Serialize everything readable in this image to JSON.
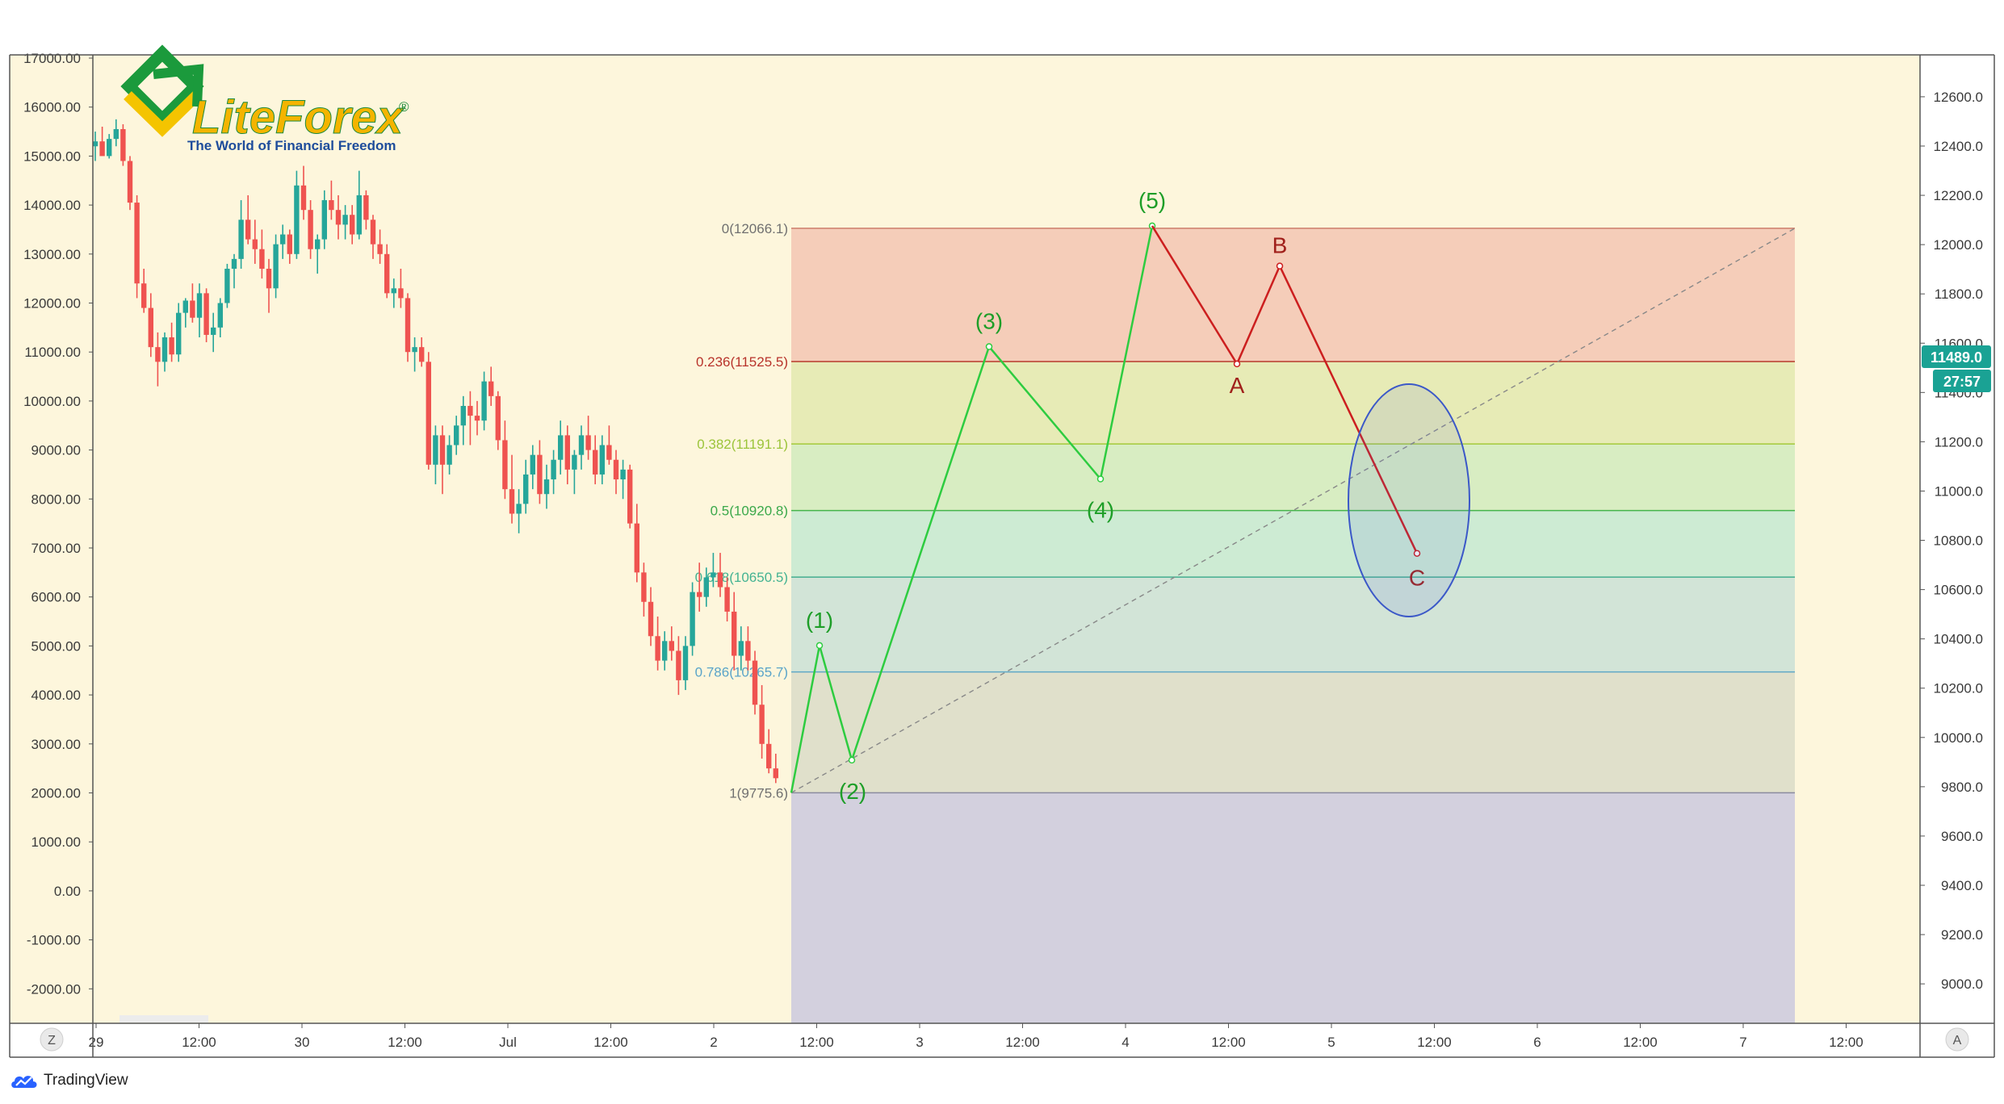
{
  "colors": {
    "background": "#fdf6dc",
    "bull": "#26a69a",
    "bear": "#ef5350",
    "impulse": "#2ecc40",
    "impulse_label": "#1e9e28",
    "correction": "#cc1f1f",
    "correction_label": "#a0201b",
    "ellipse": "#3b58c8",
    "price_badge": "#1aa294"
  },
  "branding": {
    "logo_name": "LiteForex",
    "logo_registered": "®",
    "logo_tagline": "The World of Financial Freedom",
    "footer_name": "TradingView",
    "footer_icon": "tradingview-cloud-icon"
  },
  "buttons": {
    "left_scale_label": "Z",
    "right_scale_label": "A"
  },
  "chart_data": {
    "type": "candlestick",
    "x_ticks": [
      "29",
      "12:00",
      "30",
      "12:00",
      "Jul",
      "12:00",
      "2",
      "12:00",
      "3",
      "12:00",
      "4",
      "12:00",
      "5",
      "12:00",
      "6",
      "12:00",
      "7",
      "12:00"
    ],
    "left_axis_ticks": [
      "17000.00",
      "16000.00",
      "15000.00",
      "14000.00",
      "13000.00",
      "12000.00",
      "11000.00",
      "10000.00",
      "9000.00",
      "8000.00",
      "7000.00",
      "6000.00",
      "5000.00",
      "4000.00",
      "3000.00",
      "2000.00",
      "1000.00",
      "0.00",
      "-1000.00",
      "-2000.00"
    ],
    "right_axis_ticks": [
      "12600.0",
      "12400.0",
      "12200.0",
      "12000.0",
      "11800.0",
      "11600.0",
      "11400.0",
      "11200.0",
      "11000.0",
      "10800.0",
      "10600.0",
      "10400.0",
      "10200.0",
      "10000.0",
      "9800.0",
      "9600.0",
      "9400.0",
      "9200.0",
      "9000.0"
    ],
    "right_ylim": [
      8840,
      12770
    ],
    "last_price": "11489.0",
    "last_price_value": 11489,
    "countdown": "27:57",
    "fib_levels": [
      {
        "label": "0(12066.1)",
        "price": 12066.1,
        "line": "#cd7e6c",
        "fill": "#f5cdb9",
        "text": "#707070"
      },
      {
        "label": "0.236(11525.5)",
        "price": 11525.5,
        "line": "#b83a2c",
        "fill": "#e7ebb6",
        "text": "#b8332b"
      },
      {
        "label": "0.382(11191.1)",
        "price": 11191.1,
        "line": "#a4c93a",
        "fill": "#d8edc2",
        "text": "#9bc43a"
      },
      {
        "label": "0.5(10920.8)",
        "price": 10920.8,
        "line": "#45b54b",
        "fill": "#cdebd3",
        "text": "#3aa84a"
      },
      {
        "label": "0.618(10650.5)",
        "price": 10650.5,
        "line": "#43ad8f",
        "fill": "#d2e4d7",
        "text": "#43b392"
      },
      {
        "label": "0.786(10265.7)",
        "price": 10265.7,
        "line": "#5fa8c6",
        "fill": "#e0e0cb",
        "text": "#5aa4c9"
      },
      {
        "label": "1(9775.6)",
        "price": 9775.6,
        "line": "#8a8aa0",
        "fill": "#d3d0de",
        "text": "#707070"
      }
    ],
    "impulse_waves": [
      {
        "label": "(1)",
        "price": 10373
      },
      {
        "label": "(2)",
        "price": 9908
      },
      {
        "label": "(3)",
        "price": 11586
      },
      {
        "label": "(4)",
        "price": 11049
      },
      {
        "label": "(5)",
        "price": 12076
      }
    ],
    "correction_waves": [
      {
        "label": "A",
        "price": 11516
      },
      {
        "label": "B",
        "price": 11913
      },
      {
        "label": "C",
        "price": 10747
      }
    ],
    "candles": [
      [
        15200,
        15500,
        14900,
        15300
      ],
      [
        15300,
        15600,
        15050,
        15000
      ],
      [
        15000,
        15450,
        14950,
        15350
      ],
      [
        15350,
        15750,
        15200,
        15550
      ],
      [
        15550,
        15650,
        14800,
        14900
      ],
      [
        14900,
        15000,
        13900,
        14050
      ],
      [
        14050,
        14200,
        12100,
        12400
      ],
      [
        12400,
        12700,
        11800,
        11900
      ],
      [
        11900,
        12200,
        10900,
        11100
      ],
      [
        11100,
        11400,
        10300,
        10800
      ],
      [
        10800,
        11400,
        10600,
        11300
      ],
      [
        11300,
        11600,
        10800,
        10950
      ],
      [
        10950,
        12000,
        10800,
        11800
      ],
      [
        11800,
        12100,
        11500,
        12050
      ],
      [
        12050,
        12400,
        11600,
        11700
      ],
      [
        11700,
        12400,
        11300,
        12200
      ],
      [
        12200,
        12300,
        11200,
        11350
      ],
      [
        11350,
        11800,
        11000,
        11500
      ],
      [
        11500,
        12100,
        11300,
        12000
      ],
      [
        12000,
        12800,
        11900,
        12700
      ],
      [
        12700,
        13000,
        12300,
        12900
      ],
      [
        12900,
        14100,
        12700,
        13700
      ],
      [
        13700,
        14200,
        13200,
        13300
      ],
      [
        13300,
        13700,
        12800,
        13100
      ],
      [
        13100,
        13500,
        12500,
        12700
      ],
      [
        12700,
        12900,
        11800,
        12300
      ],
      [
        12300,
        13400,
        12100,
        13200
      ],
      [
        13200,
        13600,
        12900,
        13400
      ],
      [
        13400,
        13500,
        12800,
        13000
      ],
      [
        13000,
        14700,
        12900,
        14400
      ],
      [
        14400,
        14800,
        13700,
        13900
      ],
      [
        13900,
        14100,
        12900,
        13100
      ],
      [
        13100,
        13400,
        12600,
        13300
      ],
      [
        13300,
        14300,
        13100,
        14100
      ],
      [
        14100,
        14500,
        13700,
        13900
      ],
      [
        13900,
        14200,
        13300,
        13600
      ],
      [
        13600,
        14000,
        13300,
        13800
      ],
      [
        13800,
        14000,
        13200,
        13400
      ],
      [
        13400,
        14700,
        13300,
        14200
      ],
      [
        14200,
        14300,
        13500,
        13700
      ],
      [
        13700,
        13800,
        12900,
        13200
      ],
      [
        13200,
        13500,
        12800,
        13000
      ],
      [
        13000,
        13200,
        12100,
        12200
      ],
      [
        12200,
        12500,
        11900,
        12300
      ],
      [
        12300,
        12700,
        11900,
        12100
      ],
      [
        12100,
        12200,
        10800,
        11000
      ],
      [
        11000,
        11300,
        10600,
        11100
      ],
      [
        11100,
        11300,
        10700,
        10800
      ],
      [
        10800,
        11000,
        8600,
        8700
      ],
      [
        8700,
        9500,
        8300,
        9300
      ],
      [
        9300,
        9500,
        8100,
        8700
      ],
      [
        8700,
        9300,
        8500,
        9100
      ],
      [
        9100,
        9700,
        8900,
        9500
      ],
      [
        9500,
        10100,
        9100,
        9900
      ],
      [
        9900,
        10200,
        9100,
        9700
      ],
      [
        9700,
        10000,
        9300,
        9600
      ],
      [
        9600,
        10600,
        9400,
        10400
      ],
      [
        10400,
        10700,
        9900,
        10100
      ],
      [
        10100,
        10200,
        9000,
        9200
      ],
      [
        9200,
        9600,
        8000,
        8200
      ],
      [
        8200,
        8900,
        7500,
        7700
      ],
      [
        7700,
        8200,
        7300,
        7900
      ],
      [
        7900,
        8800,
        7700,
        8500
      ],
      [
        8500,
        9100,
        8200,
        8900
      ],
      [
        8900,
        9200,
        7900,
        8100
      ],
      [
        8100,
        8700,
        7800,
        8400
      ],
      [
        8400,
        9000,
        8100,
        8800
      ],
      [
        8800,
        9600,
        8500,
        9300
      ],
      [
        9300,
        9500,
        8300,
        8600
      ],
      [
        8600,
        9000,
        8100,
        8900
      ],
      [
        8900,
        9500,
        8600,
        9300
      ],
      [
        9300,
        9700,
        8800,
        9000
      ],
      [
        9000,
        9300,
        8300,
        8500
      ],
      [
        8500,
        9300,
        8300,
        9100
      ],
      [
        9100,
        9500,
        8700,
        8800
      ],
      [
        8800,
        9000,
        8100,
        8400
      ],
      [
        8400,
        8800,
        8000,
        8600
      ],
      [
        8600,
        8700,
        7400,
        7500
      ],
      [
        7500,
        7900,
        6300,
        6500
      ],
      [
        6500,
        6700,
        5600,
        5900
      ],
      [
        5900,
        6200,
        5000,
        5200
      ],
      [
        5200,
        5600,
        4500,
        4700
      ],
      [
        4700,
        5300,
        4500,
        5100
      ],
      [
        5100,
        5400,
        4700,
        4900
      ],
      [
        4900,
        5200,
        4000,
        4300
      ],
      [
        4300,
        5200,
        4100,
        5000
      ],
      [
        5000,
        6300,
        4800,
        6100
      ],
      [
        6100,
        6700,
        5700,
        6000
      ],
      [
        6000,
        6600,
        5800,
        6400
      ],
      [
        6400,
        6900,
        6200,
        6500
      ],
      [
        6500,
        6900,
        6000,
        6200
      ],
      [
        6200,
        6400,
        5500,
        5700
      ],
      [
        5700,
        6100,
        4500,
        4800
      ],
      [
        4800,
        5400,
        4500,
        5100
      ],
      [
        5100,
        5400,
        4500,
        4700
      ],
      [
        4700,
        4900,
        3600,
        3800
      ],
      [
        3800,
        4200,
        2700,
        3000
      ],
      [
        3000,
        3300,
        2400,
        2500
      ],
      [
        2500,
        2800,
        2200,
        2300
      ]
    ]
  }
}
